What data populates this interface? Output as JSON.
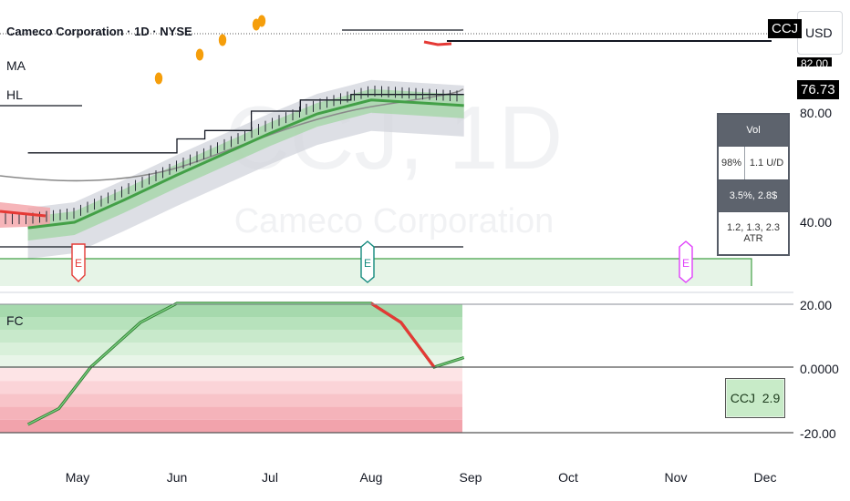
{
  "header": {
    "symbol_title": "Cameco Corporation · 1D · NYSE",
    "indicator_1": "MA",
    "indicator_2": "HL",
    "currency": "USD",
    "symbol_tag": "CCJ",
    "price_tag": "76.73",
    "price_tag_partial": "82.00"
  },
  "watermark": {
    "symbol": "CCJ, 1D",
    "name": "Cameco Corporation"
  },
  "vol_table": {
    "header": "Vol",
    "left_cell": "98%",
    "right_cell": "1.1 U/D",
    "row3": "3.5%, 2.8$",
    "row4": "1.2, 1.3, 2.3 ATR"
  },
  "fc_panel": {
    "label": "FC",
    "box_symbol": "CCJ",
    "box_value": "2.9"
  },
  "earnings_markers": [
    {
      "letter": "E",
      "date": "Apr 24",
      "color": "#e53935"
    },
    {
      "letter": "E",
      "date": "Jul 31",
      "color": "#138a7e"
    },
    {
      "letter": "E",
      "date": "Nov 6",
      "color": "#e040fb"
    }
  ],
  "colors": {
    "bull_line": "#43a047",
    "bear_line": "#e53935",
    "band_green": "#a5d6a7",
    "band_gray": "#d1d4dc",
    "slow_ma": "#8a8a8a",
    "dot": "#f59e0b"
  },
  "chart_data": [
    {
      "type": "line",
      "title": "Cameco Corporation · 1D · NYSE",
      "x_axis_labels": [
        "May",
        "Jun",
        "Jul",
        "Aug",
        "Sep",
        "Oct",
        "Nov",
        "Dec"
      ],
      "y_axis_labels": [
        "80.00",
        "40.00"
      ],
      "series": [
        {
          "name": "MA",
          "x": [
            "Apr 15",
            "Apr 30",
            "May 15",
            "Jun 1",
            "Jun 15",
            "Jul 1",
            "Jul 15",
            "Aug 1",
            "Aug 15",
            "Aug 29"
          ],
          "values": [
            38,
            40,
            48,
            57,
            64,
            72,
            79,
            84,
            83,
            82
          ]
        },
        {
          "name": "HL",
          "x": [
            "Apr 15",
            "May 1",
            "May 20",
            "Jun 1",
            "Jun 10",
            "Jun 25",
            "Jul 10",
            "Jul 25",
            "Aug 29"
          ],
          "values": [
            65,
            65,
            65,
            70,
            73,
            80,
            84,
            86,
            86
          ]
        }
      ]
    },
    {
      "type": "line",
      "title": "FC",
      "y_axis_labels": [
        "20.00",
        "0.0000",
        "-20.00"
      ],
      "ylim": [
        -22,
        22
      ],
      "series": [
        {
          "name": "FC",
          "x": [
            "Apr 15",
            "Apr 25",
            "May 5",
            "May 20",
            "Jun 1",
            "Jun 15",
            "Jul 1",
            "Jul 15",
            "Aug 1",
            "Aug 10",
            "Aug 20",
            "Aug 29"
          ],
          "values": [
            -18,
            -13,
            0,
            14,
            20,
            20,
            20,
            20,
            20,
            14,
            0,
            3
          ]
        }
      ]
    }
  ]
}
